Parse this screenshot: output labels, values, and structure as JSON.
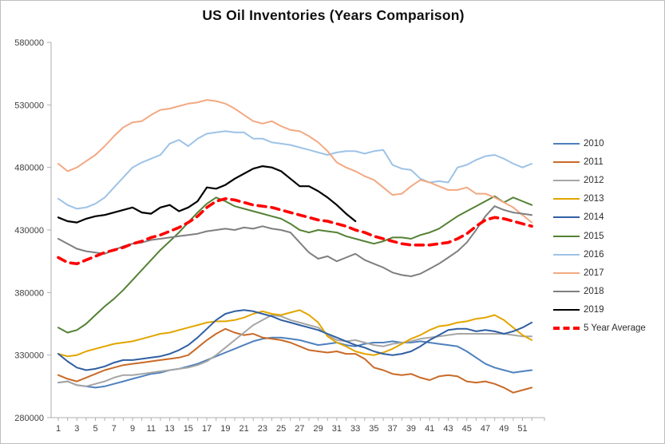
{
  "window": {
    "background": "#ffffff",
    "border_color": "#bfbfbf"
  },
  "chart_data": {
    "type": "line",
    "title": "US Oil Inventories (Years Comparison)",
    "xlabel": "",
    "ylabel": "",
    "grid": false,
    "legend_position": "right",
    "x_axis": {
      "min": 1,
      "max": 52,
      "tick_labels": [
        1,
        3,
        5,
        7,
        9,
        11,
        13,
        15,
        17,
        19,
        21,
        23,
        25,
        27,
        29,
        31,
        33,
        35,
        37,
        39,
        41,
        43,
        45,
        47,
        49,
        51
      ]
    },
    "y_axis": {
      "min": 280000,
      "max": 580000,
      "step": 50000,
      "tick_labels": [
        "280000",
        "330000",
        "380000",
        "430000",
        "480000",
        "530000",
        "580000"
      ]
    },
    "axis_color": "#aeaeae",
    "series": [
      {
        "name": "2010",
        "color": "#4e81bd",
        "width": 2,
        "dashed": false,
        "values": [
          308000,
          309000,
          306000,
          305000,
          304000,
          305000,
          307000,
          309000,
          311000,
          313000,
          315000,
          316000,
          318000,
          319000,
          321000,
          323000,
          326000,
          329000,
          332000,
          335000,
          338000,
          341000,
          343000,
          344000,
          344000,
          343000,
          342000,
          340000,
          338000,
          339000,
          340000,
          338000,
          337000,
          339000,
          340000,
          340000,
          341000,
          340000,
          340000,
          341000,
          340000,
          339000,
          338000,
          337000,
          333000,
          328000,
          323000,
          320000,
          318000,
          316000,
          317000,
          318000
        ]
      },
      {
        "name": "2011",
        "color": "#c96a28",
        "width": 2,
        "dashed": false,
        "values": [
          314000,
          311000,
          309000,
          312000,
          315000,
          318000,
          320000,
          322000,
          323000,
          324000,
          325000,
          326000,
          327000,
          328000,
          330000,
          336000,
          342000,
          347000,
          351000,
          348000,
          346000,
          347000,
          344000,
          343000,
          342000,
          340000,
          337000,
          334000,
          333000,
          332000,
          333000,
          331000,
          331000,
          327000,
          320000,
          318000,
          315000,
          314000,
          315000,
          312000,
          310000,
          313000,
          314000,
          313000,
          309000,
          308000,
          309000,
          307000,
          304000,
          300000,
          302000,
          304000
        ]
      },
      {
        "name": "2012",
        "color": "#a6a6a6",
        "width": 2,
        "dashed": false,
        "values": [
          308000,
          309000,
          306000,
          305000,
          307000,
          309000,
          312000,
          314000,
          314000,
          315000,
          316000,
          317000,
          318000,
          319000,
          320000,
          322000,
          325000,
          330000,
          336000,
          342000,
          348000,
          354000,
          358000,
          362000,
          361000,
          358000,
          356000,
          354000,
          352000,
          346000,
          342000,
          341000,
          342000,
          340000,
          338000,
          337000,
          339000,
          340000,
          341000,
          343000,
          344000,
          345000,
          346000,
          347000,
          347000,
          347000,
          347000,
          347000,
          347000,
          346000,
          345000,
          345000
        ]
      },
      {
        "name": "2013",
        "color": "#e2a500",
        "width": 2,
        "dashed": false,
        "values": [
          331000,
          329000,
          330000,
          333000,
          335000,
          337000,
          339000,
          340000,
          341000,
          343000,
          345000,
          347000,
          348000,
          350000,
          352000,
          354000,
          356000,
          357000,
          357000,
          358000,
          360000,
          363000,
          365000,
          363000,
          362000,
          364000,
          366000,
          362000,
          356000,
          345000,
          340000,
          337000,
          333000,
          331000,
          330000,
          332000,
          335000,
          339000,
          343000,
          346000,
          350000,
          353000,
          354000,
          356000,
          357000,
          359000,
          360000,
          362000,
          358000,
          352000,
          346000,
          342000
        ]
      },
      {
        "name": "2014",
        "color": "#305fa2",
        "width": 2,
        "dashed": false,
        "values": [
          331000,
          325000,
          320000,
          318000,
          319000,
          321000,
          324000,
          326000,
          326000,
          327000,
          328000,
          329000,
          331000,
          334000,
          338000,
          344000,
          351000,
          358000,
          363000,
          365000,
          366000,
          365000,
          363000,
          361000,
          358000,
          356000,
          354000,
          352000,
          350000,
          347000,
          344000,
          341000,
          338000,
          336000,
          333000,
          331000,
          330000,
          331000,
          333000,
          337000,
          342000,
          346000,
          350000,
          351000,
          351000,
          349000,
          350000,
          349000,
          347000,
          349000,
          352000,
          356000
        ]
      },
      {
        "name": "2015",
        "color": "#548235",
        "width": 2,
        "dashed": false,
        "values": [
          352000,
          348000,
          350000,
          355000,
          362000,
          369000,
          375000,
          382000,
          390000,
          398000,
          406000,
          414000,
          421000,
          428000,
          436000,
          444000,
          451000,
          456000,
          453000,
          449000,
          447000,
          445000,
          443000,
          441000,
          439000,
          435000,
          430000,
          428000,
          430000,
          429000,
          428000,
          425000,
          423000,
          421000,
          419000,
          421000,
          424000,
          424000,
          423000,
          426000,
          428000,
          431000,
          436000,
          441000,
          445000,
          449000,
          453000,
          457000,
          452000,
          456000,
          453000,
          450000
        ]
      },
      {
        "name": "2016",
        "color": "#9dc3e6",
        "width": 2,
        "dashed": false,
        "values": [
          455000,
          450000,
          447000,
          448000,
          451000,
          456000,
          464000,
          472000,
          480000,
          484000,
          487000,
          490000,
          499000,
          502000,
          497000,
          503000,
          507000,
          508000,
          509000,
          508000,
          508000,
          503000,
          503000,
          500000,
          499000,
          498000,
          496000,
          494000,
          492000,
          490000,
          492000,
          493000,
          493000,
          491000,
          493000,
          494000,
          482000,
          479000,
          478000,
          471000,
          468000,
          469000,
          468000,
          480000,
          482000,
          486000,
          489000,
          490000,
          487000,
          483000,
          480000,
          483000
        ]
      },
      {
        "name": "2017",
        "color": "#f2a983",
        "width": 2,
        "dashed": false,
        "values": [
          483000,
          477000,
          480000,
          485000,
          490000,
          497000,
          505000,
          512000,
          516000,
          517000,
          522000,
          526000,
          527000,
          529000,
          531000,
          532000,
          534000,
          533000,
          531000,
          527000,
          522000,
          517000,
          515000,
          517000,
          513000,
          510000,
          509000,
          505000,
          500000,
          493000,
          484000,
          480000,
          477000,
          473000,
          470000,
          464000,
          458000,
          459000,
          465000,
          470000,
          468000,
          465000,
          462000,
          462000,
          464000,
          459000,
          459000,
          456000,
          452000,
          448000,
          442000,
          436000
        ]
      },
      {
        "name": "2018",
        "color": "#7f7f7f",
        "width": 2,
        "dashed": false,
        "values": [
          423000,
          419000,
          415000,
          413000,
          412000,
          411000,
          414000,
          417000,
          419000,
          420000,
          422000,
          423000,
          424000,
          425000,
          426000,
          427000,
          429000,
          430000,
          431000,
          430000,
          432000,
          431000,
          433000,
          431000,
          430000,
          428000,
          420000,
          412000,
          407000,
          409000,
          405000,
          408000,
          411000,
          406000,
          403000,
          400000,
          396000,
          394000,
          393000,
          395000,
          399000,
          403000,
          408000,
          413000,
          420000,
          430000,
          441000,
          449000,
          446000,
          444000,
          443000,
          442000
        ]
      },
      {
        "name": "2019",
        "color": "#000000",
        "width": 2.2,
        "dashed": false,
        "values": [
          440000,
          437000,
          436000,
          439000,
          441000,
          442000,
          444000,
          446000,
          448000,
          444000,
          443000,
          448000,
          450000,
          445000,
          448000,
          453000,
          464000,
          463000,
          466000,
          471000,
          475000,
          479000,
          481000,
          480000,
          477000,
          471000,
          465000,
          465000,
          461000,
          456000,
          450000,
          443000,
          437000
        ]
      },
      {
        "name": "5 Year Average",
        "color": "#ff0000",
        "width": 3.6,
        "dashed": true,
        "values": [
          408000,
          404000,
          403000,
          406000,
          409000,
          412000,
          414000,
          416000,
          419000,
          421000,
          424000,
          426000,
          429000,
          432000,
          436000,
          441000,
          448000,
          453000,
          455000,
          454000,
          452000,
          450000,
          449000,
          448000,
          446000,
          444000,
          442000,
          440000,
          438000,
          437000,
          435000,
          433000,
          430000,
          428000,
          425000,
          423000,
          421000,
          419000,
          418000,
          418000,
          418000,
          419000,
          420000,
          423000,
          427000,
          433000,
          438000,
          440000,
          439000,
          437000,
          435000,
          433000
        ]
      }
    ]
  }
}
